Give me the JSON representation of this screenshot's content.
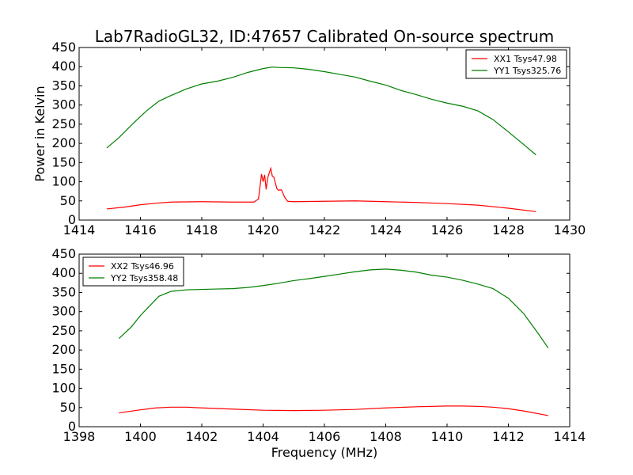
{
  "chart_data": [
    {
      "type": "line",
      "title": "Lab7RadioGL32, ID:47657 Calibrated On-source spectrum",
      "ylabel": "Power in Kelvin",
      "xlabel": "",
      "xlim": [
        1414,
        1430
      ],
      "ylim": [
        0,
        450
      ],
      "xticks": [
        1414,
        1416,
        1418,
        1420,
        1422,
        1424,
        1426,
        1428,
        1430
      ],
      "yticks": [
        0,
        50,
        100,
        150,
        200,
        250,
        300,
        350,
        400,
        450
      ],
      "grid": false,
      "legend_position": "top-right",
      "series": [
        {
          "name": "XX1 Tsys47.98",
          "color": "#ff0000",
          "points": [
            [
              1414.9,
              29
            ],
            [
              1415.5,
              34
            ],
            [
              1416.0,
              40
            ],
            [
              1416.5,
              44
            ],
            [
              1417.0,
              47
            ],
            [
              1418.0,
              48
            ],
            [
              1419.0,
              47
            ],
            [
              1419.7,
              47
            ],
            [
              1419.85,
              55
            ],
            [
              1419.95,
              120
            ],
            [
              1420.0,
              100
            ],
            [
              1420.05,
              118
            ],
            [
              1420.1,
              80
            ],
            [
              1420.15,
              110
            ],
            [
              1420.25,
              135
            ],
            [
              1420.3,
              115
            ],
            [
              1420.35,
              112
            ],
            [
              1420.45,
              82
            ],
            [
              1420.5,
              78
            ],
            [
              1420.6,
              79
            ],
            [
              1420.7,
              60
            ],
            [
              1420.8,
              49
            ],
            [
              1421.0,
              48
            ],
            [
              1422.0,
              49
            ],
            [
              1423.0,
              50
            ],
            [
              1424.0,
              48
            ],
            [
              1425.0,
              46
            ],
            [
              1426.0,
              43
            ],
            [
              1427.0,
              39
            ],
            [
              1428.0,
              31
            ],
            [
              1428.9,
              22
            ]
          ]
        },
        {
          "name": "YY1 Tsys325.76",
          "color": "#007f00",
          "points": [
            [
              1414.9,
              188
            ],
            [
              1415.3,
              215
            ],
            [
              1415.8,
              255
            ],
            [
              1416.2,
              285
            ],
            [
              1416.6,
              310
            ],
            [
              1417.0,
              325
            ],
            [
              1417.5,
              342
            ],
            [
              1418.0,
              355
            ],
            [
              1418.5,
              362
            ],
            [
              1419.0,
              372
            ],
            [
              1419.5,
              385
            ],
            [
              1420.0,
              395
            ],
            [
              1420.3,
              399
            ],
            [
              1420.5,
              398
            ],
            [
              1421.0,
              397
            ],
            [
              1421.5,
              393
            ],
            [
              1422.0,
              387
            ],
            [
              1422.5,
              380
            ],
            [
              1423.0,
              373
            ],
            [
              1423.5,
              362
            ],
            [
              1424.0,
              352
            ],
            [
              1424.5,
              338
            ],
            [
              1425.0,
              327
            ],
            [
              1425.5,
              315
            ],
            [
              1426.0,
              305
            ],
            [
              1426.5,
              297
            ],
            [
              1427.0,
              285
            ],
            [
              1427.5,
              262
            ],
            [
              1428.0,
              230
            ],
            [
              1428.5,
              197
            ],
            [
              1428.9,
              170
            ]
          ]
        }
      ]
    },
    {
      "type": "line",
      "title": "",
      "ylabel": "",
      "xlabel": "Frequency (MHz)",
      "xlim": [
        1398,
        1414
      ],
      "ylim": [
        0,
        450
      ],
      "xticks": [
        1398,
        1400,
        1402,
        1404,
        1406,
        1408,
        1410,
        1412,
        1414
      ],
      "yticks": [
        0,
        50,
        100,
        150,
        200,
        250,
        300,
        350,
        400,
        450
      ],
      "grid": false,
      "legend_position": "top-left",
      "series": [
        {
          "name": "XX2 Tsys46.96",
          "color": "#ff0000",
          "points": [
            [
              1399.3,
              36
            ],
            [
              1400.0,
              44
            ],
            [
              1400.5,
              49
            ],
            [
              1401.0,
              51
            ],
            [
              1401.5,
              51
            ],
            [
              1402.0,
              49
            ],
            [
              1403.0,
              46
            ],
            [
              1404.0,
              43
            ],
            [
              1405.0,
              42
            ],
            [
              1406.0,
              43
            ],
            [
              1407.0,
              45
            ],
            [
              1408.0,
              49
            ],
            [
              1409.0,
              52
            ],
            [
              1410.0,
              54
            ],
            [
              1410.5,
              54
            ],
            [
              1411.0,
              53
            ],
            [
              1411.5,
              51
            ],
            [
              1412.0,
              47
            ],
            [
              1412.5,
              41
            ],
            [
              1413.3,
              29
            ]
          ]
        },
        {
          "name": "YY2 Tsys358.48",
          "color": "#007f00",
          "points": [
            [
              1399.3,
              230
            ],
            [
              1399.7,
              260
            ],
            [
              1400.0,
              290
            ],
            [
              1400.3,
              315
            ],
            [
              1400.6,
              340
            ],
            [
              1401.0,
              353
            ],
            [
              1401.5,
              357
            ],
            [
              1402.0,
              358
            ],
            [
              1402.5,
              359
            ],
            [
              1403.0,
              360
            ],
            [
              1403.5,
              363
            ],
            [
              1404.0,
              368
            ],
            [
              1404.5,
              374
            ],
            [
              1405.0,
              381
            ],
            [
              1405.5,
              386
            ],
            [
              1406.0,
              392
            ],
            [
              1406.5,
              398
            ],
            [
              1407.0,
              404
            ],
            [
              1407.5,
              409
            ],
            [
              1408.0,
              411
            ],
            [
              1408.5,
              408
            ],
            [
              1409.0,
              403
            ],
            [
              1409.5,
              395
            ],
            [
              1410.0,
              390
            ],
            [
              1410.5,
              382
            ],
            [
              1411.0,
              372
            ],
            [
              1411.5,
              360
            ],
            [
              1412.0,
              335
            ],
            [
              1412.5,
              295
            ],
            [
              1413.0,
              240
            ],
            [
              1413.3,
              205
            ]
          ]
        }
      ]
    }
  ]
}
